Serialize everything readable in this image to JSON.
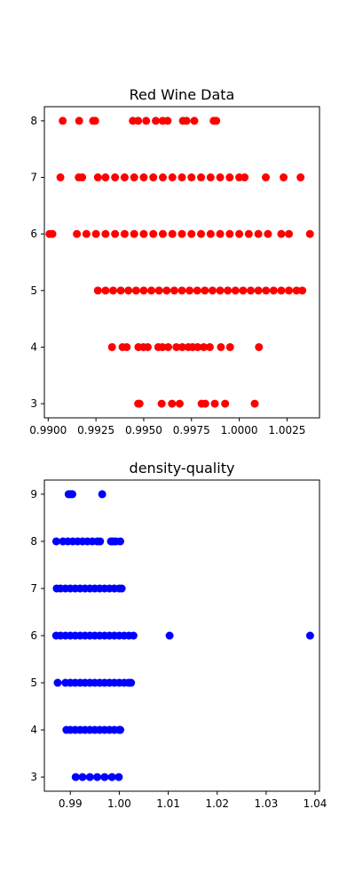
{
  "chart_data": [
    {
      "type": "scatter",
      "title": "Red Wine Data",
      "xlabel": "",
      "ylabel": "",
      "xlim": [
        0.9898,
        1.0042
      ],
      "ylim": [
        2.75,
        8.25
      ],
      "grid": false,
      "x_ticks": [
        0.99,
        0.9925,
        0.995,
        0.9975,
        1.0,
        1.0025
      ],
      "x_tick_labels": [
        "0.9900",
        "0.9925",
        "0.9950",
        "0.9975",
        "1.0000",
        "1.0025"
      ],
      "y_ticks": [
        3,
        4,
        5,
        6,
        7,
        8
      ],
      "y_tick_labels": [
        "3",
        "4",
        "5",
        "6",
        "7",
        "8"
      ],
      "series": [
        {
          "color": "#ff0000",
          "points_by_level": [
            {
              "y": 3,
              "x": [
                0.99471,
                0.99478,
                0.99594,
                0.99648,
                0.99688,
                0.99803,
                0.99822,
                0.99872,
                0.99926,
                1.00081
              ]
            },
            {
              "y": 4,
              "x": [
                0.99334,
                0.99389,
                0.99411,
                0.99472,
                0.99498,
                0.99521,
                0.99576,
                0.99598,
                0.99628,
                0.99671,
                0.99702,
                0.99734,
                0.99756,
                0.99782,
                0.99814,
                0.99846,
                0.99904,
                0.99952,
                1.00103
              ]
            },
            {
              "y": 5,
              "x": [
                0.9926,
                0.993,
                0.9934,
                0.9938,
                0.9942,
                0.9946,
                0.995,
                0.9954,
                0.9958,
                0.9962,
                0.9966,
                0.997,
                0.9974,
                0.9978,
                0.9982,
                0.9986,
                0.999,
                0.9994,
                0.9998,
                1.0002,
                1.0006,
                1.001,
                1.0014,
                1.0018,
                1.0022,
                1.0026,
                1.003,
                1.0033
              ]
            },
            {
              "y": 6,
              "x": [
                0.99007,
                0.99022,
                0.9915,
                0.992,
                0.9925,
                0.993,
                0.9935,
                0.994,
                0.9945,
                0.995,
                0.9955,
                0.996,
                0.9965,
                0.997,
                0.9975,
                0.998,
                0.9985,
                0.999,
                0.9995,
                1.0,
                1.0005,
                1.001,
                1.0015,
                1.0022,
                1.0026,
                1.0037
              ]
            },
            {
              "y": 7,
              "x": [
                0.99064,
                0.9916,
                0.99178,
                0.9926,
                0.993,
                0.9935,
                0.994,
                0.9945,
                0.995,
                0.9955,
                0.996,
                0.9965,
                0.997,
                0.9975,
                0.998,
                0.9985,
                0.999,
                0.9995,
                1.0,
                1.00028,
                1.00139,
                1.00232,
                1.00321
              ]
            },
            {
              "y": 8,
              "x": [
                0.99076,
                0.99162,
                0.99235,
                0.99246,
                0.99443,
                0.99471,
                0.99513,
                0.99563,
                0.99599,
                0.99625,
                0.99705,
                0.99724,
                0.99765,
                0.99866,
                0.9988
              ]
            }
          ]
        }
      ]
    },
    {
      "type": "scatter",
      "title": "density-quality",
      "xlabel": "",
      "ylabel": "",
      "xlim": [
        0.9847,
        1.0409
      ],
      "ylim": [
        2.7,
        9.3
      ],
      "grid": false,
      "x_ticks": [
        0.99,
        1.0,
        1.01,
        1.02,
        1.03,
        1.04
      ],
      "x_tick_labels": [
        "0.99",
        "1.00",
        "1.01",
        "1.02",
        "1.03",
        "1.04"
      ],
      "y_ticks": [
        3,
        4,
        5,
        6,
        7,
        8,
        9
      ],
      "y_tick_labels": [
        "3",
        "4",
        "5",
        "6",
        "7",
        "8",
        "9"
      ],
      "series": [
        {
          "color": "#0000ff",
          "points_by_level": [
            {
              "y": 3,
              "x": [
                0.9911,
                0.9925,
                0.994,
                0.9955,
                0.997,
                0.9985,
                0.9999
              ]
            },
            {
              "y": 4,
              "x": [
                0.9892,
                0.99,
                0.991,
                0.992,
                0.993,
                0.994,
                0.995,
                0.996,
                0.997,
                0.998,
                0.999,
                1.0,
                1.0002
              ]
            },
            {
              "y": 5,
              "x": [
                0.98742,
                0.989,
                0.99,
                0.991,
                0.992,
                0.993,
                0.994,
                0.995,
                0.996,
                0.997,
                0.998,
                0.999,
                1.0,
                1.001,
                1.0019,
                1.00241
              ]
            },
            {
              "y": 6,
              "x": [
                0.98711,
                0.988,
                0.989,
                0.99,
                0.991,
                0.992,
                0.993,
                0.994,
                0.995,
                0.996,
                0.997,
                0.998,
                0.999,
                1.0,
                1.001,
                1.00198,
                1.0029,
                1.01028,
                1.03898
              ]
            },
            {
              "y": 7,
              "x": [
                0.98722,
                0.988,
                0.989,
                0.99,
                0.991,
                0.992,
                0.993,
                0.994,
                0.995,
                0.996,
                0.997,
                0.998,
                0.999,
                1.0,
                1.0005
              ]
            },
            {
              "y": 8,
              "x": [
                0.98713,
                0.9885,
                0.9895,
                0.9905,
                0.9915,
                0.9925,
                0.9935,
                0.9945,
                0.9955,
                0.99608,
                0.9983,
                0.9988,
                0.9993,
                1.0002
              ]
            },
            {
              "y": 9,
              "x": [
                0.98965,
                0.99001,
                0.99041,
                0.99651
              ]
            }
          ]
        }
      ]
    }
  ]
}
